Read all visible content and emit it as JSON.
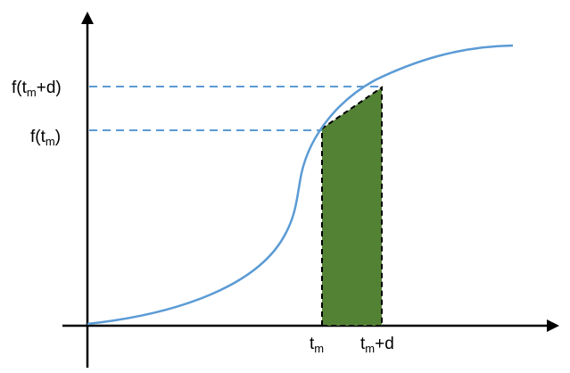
{
  "labels": {
    "y_upper": {
      "pre": "f(t",
      "sub": "m",
      "post": "+d)"
    },
    "y_lower": {
      "pre": "f(t",
      "sub": "m",
      "post": ")"
    },
    "x_left": {
      "pre": "t",
      "sub": "m",
      "post": ""
    },
    "x_right": {
      "pre": "t",
      "sub": "m",
      "post": "+d"
    }
  },
  "colors": {
    "curve": "#5b9bd5",
    "guide_lines": "#5b9bd5",
    "shaded_area": "#548235",
    "area_outline": "#000000",
    "axes": "#000000"
  },
  "icons": {
    "x_axis_arrow": "arrow-right-icon",
    "y_axis_arrow": "arrow-up-icon"
  }
}
